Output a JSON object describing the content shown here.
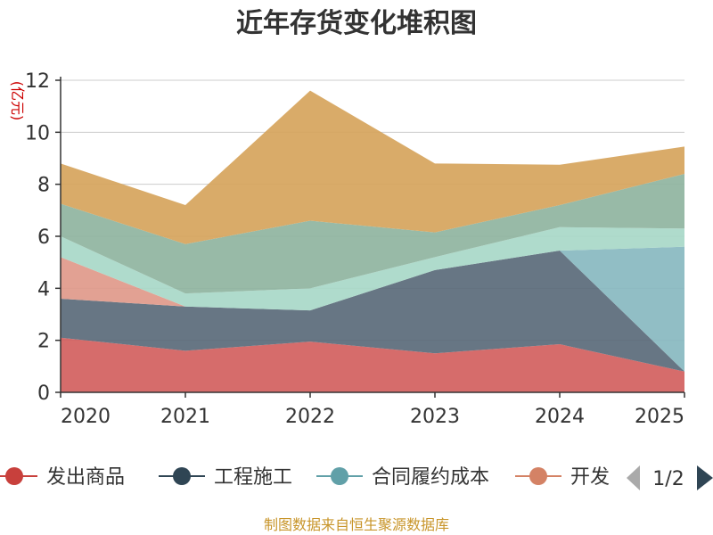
{
  "chart_data": {
    "type": "area",
    "stacked": true,
    "title": "近年存货变化堆积图",
    "unit_label": "(亿元)",
    "categories": [
      "2020",
      "2021",
      "2022",
      "2023",
      "2024",
      "2025"
    ],
    "ylim": [
      0,
      12
    ],
    "yticks": [
      "0",
      "2",
      "4",
      "6",
      "8",
      "10",
      "12"
    ],
    "grid": true,
    "series": [
      {
        "name": "发出商品",
        "color": "#d2605e",
        "values": [
          2.1,
          1.6,
          1.95,
          1.5,
          1.85,
          0.8
        ]
      },
      {
        "name": "工程施工",
        "color": "#5a6a7a",
        "values": [
          1.5,
          1.7,
          1.2,
          3.2,
          3.6,
          0.0
        ]
      },
      {
        "name": "合同履约成本",
        "color": "#88b8c0",
        "values": [
          0.0,
          0.0,
          0.0,
          0.0,
          0.0,
          4.8
        ]
      },
      {
        "name": "开发成本",
        "color": "#e0998a",
        "values": [
          1.6,
          0.0,
          0.0,
          0.0,
          0.0,
          0.0
        ]
      },
      {
        "name": "",
        "color": "#a8d8c8",
        "values": [
          0.8,
          0.5,
          0.85,
          0.5,
          0.9,
          0.7
        ]
      },
      {
        "name": "",
        "color": "#8fb4a0",
        "values": [
          1.25,
          1.9,
          2.6,
          0.95,
          0.85,
          2.1
        ]
      },
      {
        "name": "",
        "color": "#d6a45c",
        "values": [
          1.55,
          1.5,
          5.0,
          2.65,
          1.55,
          1.05
        ]
      }
    ]
  },
  "legend": {
    "items": [
      {
        "label": "发出商品",
        "color": "#c8403c"
      },
      {
        "label": "工程施工",
        "color": "#2f4554"
      },
      {
        "label": "合同履约成本",
        "color": "#61a0a8"
      },
      {
        "label": "开发",
        "color": "#d48265"
      }
    ],
    "page_indicator": "1/2"
  },
  "source": "制图数据来自恒生聚源数据库"
}
